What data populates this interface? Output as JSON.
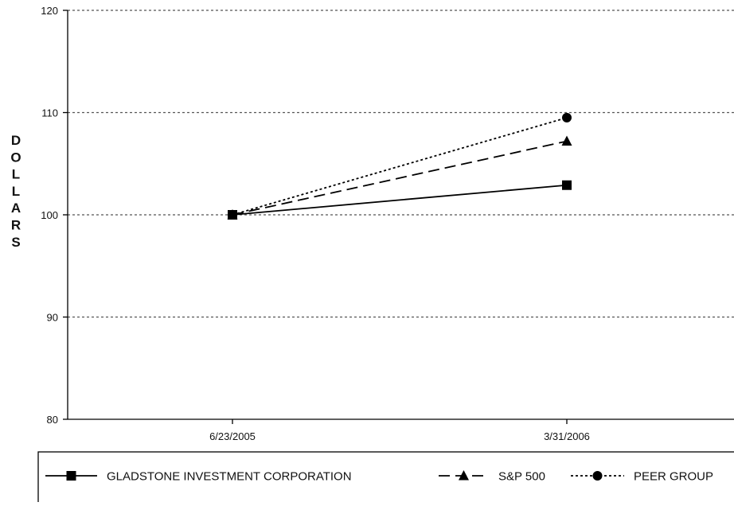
{
  "chart_data": {
    "type": "line",
    "title": "",
    "xlabel": "",
    "ylabel": "DOLLARS",
    "ylim": [
      80,
      120
    ],
    "y_ticks": [
      80,
      90,
      100,
      110,
      120
    ],
    "categories": [
      "6/23/2005",
      "3/31/2006"
    ],
    "grid": "horizontal dotted",
    "legend_position": "bottom",
    "series": [
      {
        "name": "GLADSTONE INVESTMENT CORPORATION",
        "values": [
          100,
          102.9
        ],
        "line_style": "solid",
        "marker": "square",
        "color": "#000000"
      },
      {
        "name": "S&P 500",
        "values": [
          100,
          107.2
        ],
        "line_style": "dashed",
        "marker": "triangle",
        "color": "#000000"
      },
      {
        "name": "PEER GROUP",
        "values": [
          100,
          109.5
        ],
        "line_style": "dotted",
        "marker": "circle",
        "color": "#000000"
      }
    ]
  }
}
